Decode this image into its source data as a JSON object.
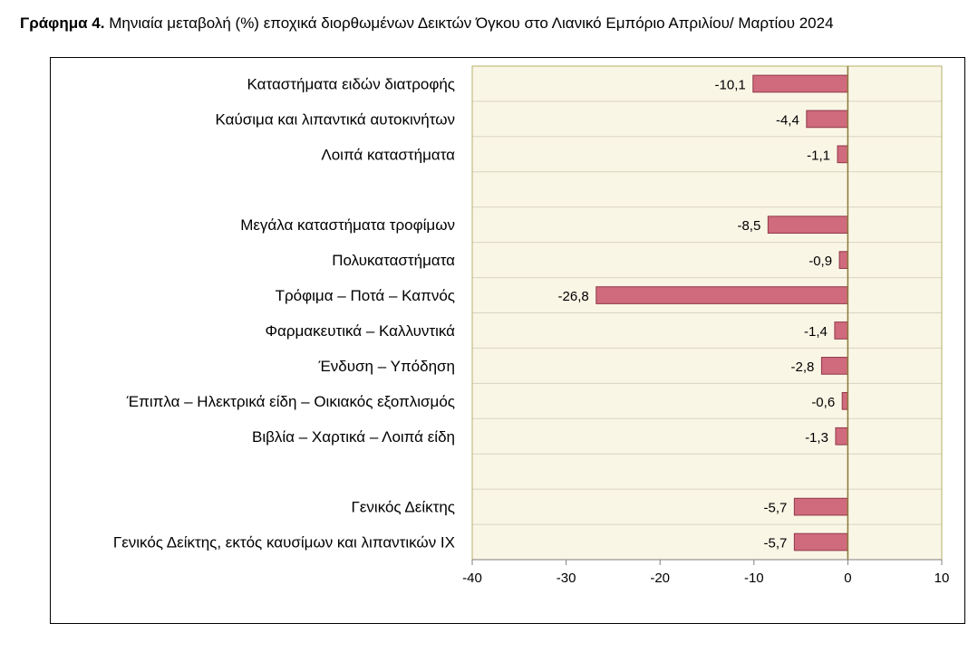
{
  "title": {
    "prefix": "Γράφημα 4.",
    "text": "Μηνιαία μεταβολή (%) εποχικά διορθωμένων Δεικτών Όγκου στο Λιανικό Εμπόριο Απριλίου/ Μαρτίου 2024"
  },
  "colors": {
    "plot_background": "#faf6e6",
    "bar_fill": "#d06a7d",
    "bar_stroke": "#8f3a4a",
    "zero_line": "#8a7a3a",
    "grid_line": "#d8d3c0",
    "plot_border": "#b5b06c"
  },
  "chart_data": {
    "type": "bar",
    "orientation": "horizontal",
    "categories": [
      "Καταστήματα ειδών διατροφής",
      "Καύσιμα και λιπαντικά αυτοκινήτων",
      "Λοιπά καταστήματα",
      "",
      "Μεγάλα καταστήματα τροφίμων",
      "Πολυκαταστήματα",
      "Τρόφιμα – Ποτά – Καπνός",
      "Φαρμακευτικά – Καλλυντικά",
      "Ένδυση – Υπόδηση",
      "Έπιπλα – Ηλεκτρικά είδη – Οικιακός εξοπλισμός",
      "Βιβλία – Χαρτικά – Λοιπά είδη",
      "",
      "Γενικός Δείκτης",
      "Γενικός Δείκτης, εκτός καυσίμων και λιπαντικών ΙΧ"
    ],
    "values": [
      -10.1,
      -4.4,
      -1.1,
      null,
      -8.5,
      -0.9,
      -26.8,
      -1.4,
      -2.8,
      -0.6,
      -1.3,
      null,
      -5.7,
      -5.7
    ],
    "value_labels": [
      "-10,1",
      "-4,4",
      "-1,1",
      "",
      "-8,5",
      "-0,9",
      "-26,8",
      "-1,4",
      "-2,8",
      "-0,6",
      "-1,3",
      "",
      "-5,7",
      "-5,7"
    ],
    "xlim": [
      -40,
      10
    ],
    "x_ticks": [
      -40,
      -30,
      -20,
      -10,
      0,
      10
    ],
    "x_tick_labels": [
      "-40",
      "-30",
      "-20",
      "-10",
      "0",
      "10"
    ],
    "xlabel": "",
    "ylabel": "",
    "grid": "horizontal category separators",
    "legend": "none"
  }
}
